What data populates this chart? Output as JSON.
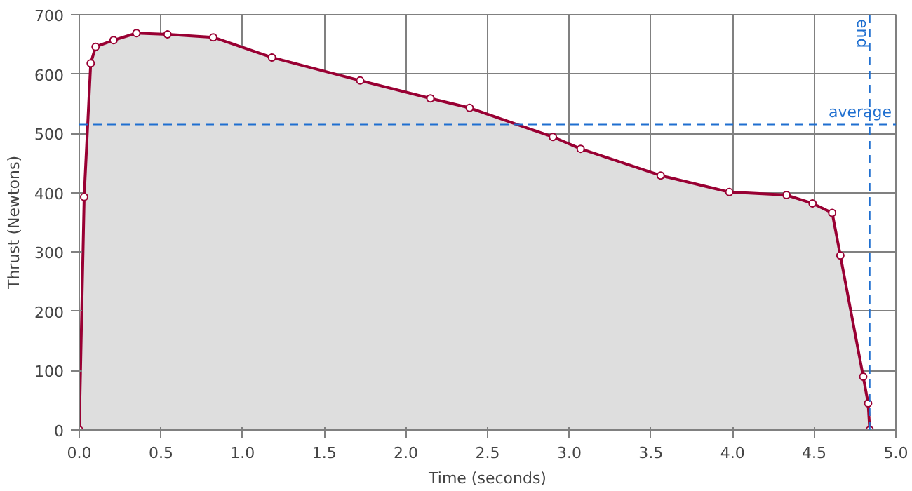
{
  "chart_data": {
    "type": "area",
    "xlabel": "Time (seconds)",
    "ylabel": "Thrust (Newtons)",
    "series": [
      {
        "color": "#990033",
        "x": [
          0,
          0.03,
          0.07,
          0.1,
          0.21,
          0.35,
          0.54,
          0.82,
          1.18,
          1.72,
          2.15,
          2.39,
          2.9,
          3.07,
          3.56,
          3.98,
          4.33,
          4.49,
          4.61,
          4.66,
          4.8,
          4.83,
          4.84
        ],
        "values": [
          0,
          393,
          618,
          646,
          657,
          669,
          667,
          662,
          628,
          589,
          559,
          543,
          494,
          474,
          429,
          401,
          396,
          382,
          366,
          294,
          90,
          45,
          0
        ]
      }
    ],
    "xlim": [
      0,
      5
    ],
    "ylim": [
      0,
      700
    ],
    "xticks": [
      {
        "value": 0,
        "label": "0.0"
      },
      {
        "value": 0.5,
        "label": "0.5"
      },
      {
        "value": 1,
        "label": "1.0"
      },
      {
        "value": 1.5,
        "label": "1.5"
      },
      {
        "value": 2,
        "label": "2.0"
      },
      {
        "value": 2.5,
        "label": "2.5"
      },
      {
        "value": 3,
        "label": "3.0"
      },
      {
        "value": 3.5,
        "label": "3.5"
      },
      {
        "value": 4,
        "label": "4.0"
      },
      {
        "value": 4.5,
        "label": "4.5"
      },
      {
        "value": 5,
        "label": "5.0"
      }
    ],
    "yticks": [
      0,
      100,
      200,
      300,
      400,
      500,
      600,
      700
    ],
    "ref_lines": [
      {
        "axis": "y",
        "value": 515,
        "label": "average",
        "color": "#1f6fd0",
        "line_style": "dashed"
      },
      {
        "axis": "x",
        "value": 4.84,
        "label": "end",
        "color": "#1f6fd0",
        "line_style": "dashed"
      }
    ],
    "grid": true,
    "marker": "circle",
    "line_style": "solid"
  }
}
